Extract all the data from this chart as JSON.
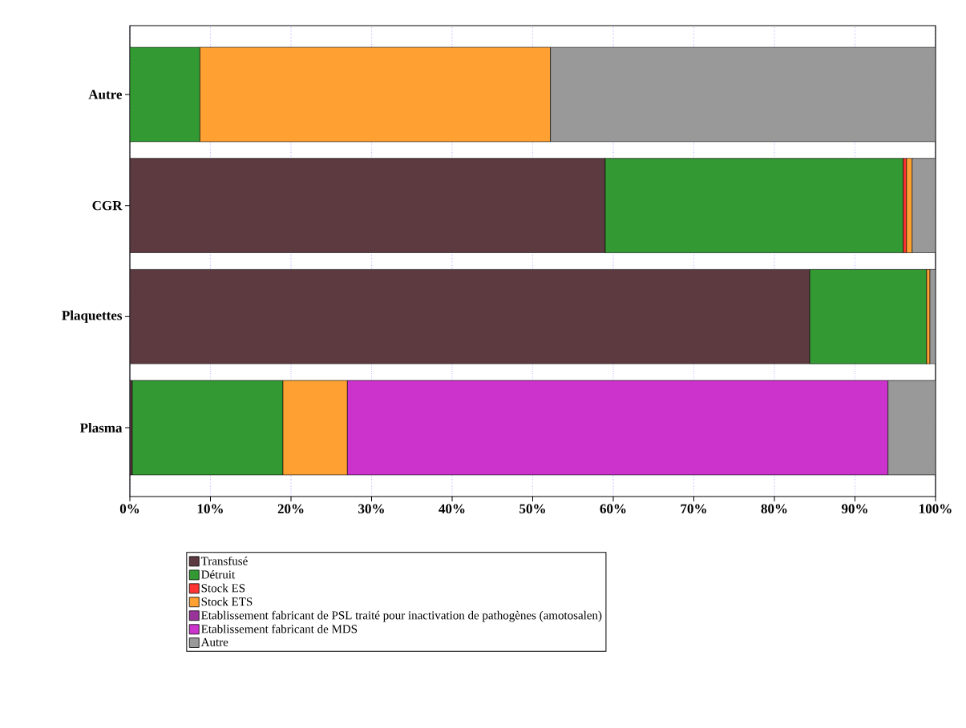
{
  "chart_data": {
    "type": "bar",
    "orientation": "horizontal",
    "stacked": true,
    "categories": [
      "Autre",
      "CGR",
      "Plaquettes",
      "Plasma"
    ],
    "series": [
      {
        "name": "Transfusé",
        "color": "#5c3a40",
        "values": [
          null,
          59.0,
          84.4,
          0.3
        ]
      },
      {
        "name": "Détruit",
        "color": "#339933",
        "values": [
          8.7,
          37.0,
          14.5,
          18.7
        ]
      },
      {
        "name": "Stock ES",
        "color": "#ff3333",
        "values": [
          null,
          0.4,
          null,
          null
        ]
      },
      {
        "name": "Stock ETS",
        "color": "#ffa033",
        "values": [
          43.5,
          0.7,
          0.4,
          8.0
        ]
      },
      {
        "name": "Etablissement fabricant de PSL traité pour inactivation de pathogènes (amotosalen)",
        "color": "#993399",
        "values": [
          null,
          null,
          null,
          null
        ]
      },
      {
        "name": "Etablissement fabricant de MDS",
        "color": "#cc33cc",
        "values": [
          null,
          null,
          null,
          67.1
        ]
      },
      {
        "name": "Autre",
        "color": "#999999",
        "values": [
          47.8,
          2.9,
          0.7,
          5.9
        ]
      }
    ],
    "xlim": [
      0,
      100
    ],
    "xticks": [
      {
        "value": 0,
        "label": "0%"
      },
      {
        "value": 10,
        "label": "10%"
      },
      {
        "value": 20,
        "label": "20%"
      },
      {
        "value": 30,
        "label": "30%"
      },
      {
        "value": 40,
        "label": "40%"
      },
      {
        "value": 50,
        "label": "50%"
      },
      {
        "value": 60,
        "label": "60%"
      },
      {
        "value": 70,
        "label": "70%"
      },
      {
        "value": 80,
        "label": "80%"
      },
      {
        "value": 90,
        "label": "90%"
      },
      {
        "value": 100,
        "label": "100%"
      }
    ],
    "grid": "x",
    "legend": "bottom"
  }
}
